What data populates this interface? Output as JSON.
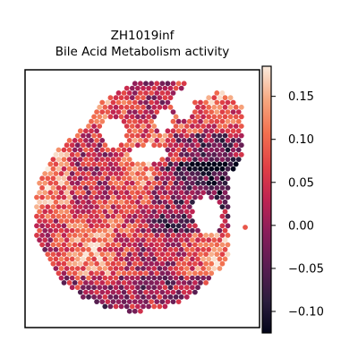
{
  "chart_data": {
    "type": "heatmap",
    "title": "ZH1019inf",
    "subtitle": "Bile Acid Metabolism activity",
    "xlabel": "",
    "ylabel": "",
    "colorbar": {
      "range": [
        -0.125,
        0.185
      ],
      "ticks": [
        0.15,
        0.1,
        0.05,
        0.0,
        -0.05,
        -0.1
      ],
      "tick_labels": [
        "0.15",
        "0.10",
        "0.05",
        "0.00",
        "−0.05",
        "−0.10"
      ],
      "colormap": "rocket"
    },
    "grid": false,
    "legend": "colorbar-right"
  }
}
